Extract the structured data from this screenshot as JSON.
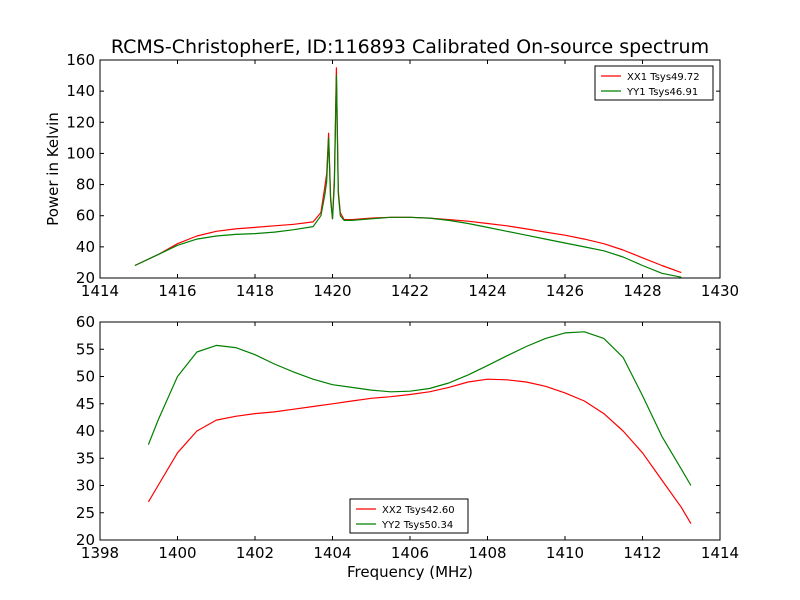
{
  "chart_data": [
    {
      "type": "line",
      "title": "RCMS-ChristopherE, ID:116893 Calibrated On-source spectrum",
      "xlabel": "",
      "ylabel": "Power in Kelvin",
      "xlim": [
        1414,
        1430
      ],
      "ylim": [
        20,
        160
      ],
      "xticks": [
        1414,
        1416,
        1418,
        1420,
        1422,
        1424,
        1426,
        1428,
        1430
      ],
      "yticks": [
        20,
        40,
        60,
        80,
        100,
        120,
        140,
        160
      ],
      "legend_position": "top-right",
      "grid": false,
      "series": [
        {
          "name": "XX1 Tsys49.72",
          "color": "#ff0000",
          "x": [
            1414.9,
            1415.5,
            1416,
            1416.5,
            1417,
            1417.5,
            1418,
            1418.5,
            1419,
            1419.5,
            1419.7,
            1419.8,
            1419.85,
            1419.9,
            1419.95,
            1420.0,
            1420.05,
            1420.1,
            1420.15,
            1420.2,
            1420.3,
            1420.5,
            1421,
            1421.5,
            1422,
            1422.5,
            1423,
            1423.5,
            1424,
            1424.5,
            1425,
            1425.5,
            1426,
            1426.5,
            1427,
            1427.5,
            1428,
            1428.5,
            1429
          ],
          "values": [
            28,
            35,
            42,
            47,
            50,
            51.5,
            52.5,
            53.5,
            54.5,
            56,
            62,
            78,
            87,
            113,
            72,
            58,
            85,
            155,
            76,
            62,
            57.5,
            57.5,
            58.5,
            59,
            59,
            58.5,
            57.5,
            56.5,
            55,
            53.5,
            51.5,
            49.5,
            47.5,
            45,
            42,
            38,
            33,
            28,
            23.5
          ]
        },
        {
          "name": "YY1 Tsys46.91",
          "color": "#008000",
          "x": [
            1414.9,
            1415.5,
            1416,
            1416.5,
            1417,
            1417.5,
            1418,
            1418.5,
            1419,
            1419.5,
            1419.7,
            1419.8,
            1419.85,
            1419.9,
            1419.95,
            1420.0,
            1420.05,
            1420.1,
            1420.15,
            1420.2,
            1420.3,
            1420.5,
            1421,
            1421.5,
            1422,
            1422.5,
            1423,
            1423.5,
            1424,
            1424.5,
            1425,
            1425.5,
            1426,
            1426.5,
            1427,
            1427.5,
            1428,
            1428.5,
            1429
          ],
          "values": [
            28,
            35,
            41,
            45,
            47,
            48,
            48.5,
            49.5,
            51,
            53,
            60,
            73,
            82,
            110,
            70,
            58,
            80,
            150,
            74,
            60,
            57,
            57,
            58,
            59,
            59,
            58.5,
            57,
            55,
            52.5,
            50,
            47.5,
            45,
            42.5,
            40,
            37.5,
            33.5,
            28,
            23,
            20.5
          ]
        }
      ]
    },
    {
      "type": "line",
      "title": "",
      "xlabel": "Frequency (MHz)",
      "ylabel": "",
      "xlim": [
        1398,
        1414
      ],
      "ylim": [
        20,
        60
      ],
      "xticks": [
        1398,
        1400,
        1402,
        1404,
        1406,
        1408,
        1410,
        1412,
        1414
      ],
      "yticks": [
        20,
        25,
        30,
        35,
        40,
        45,
        50,
        55,
        60
      ],
      "legend_position": "bottom-center",
      "grid": false,
      "series": [
        {
          "name": "XX2 Tsys42.60",
          "color": "#ff0000",
          "x": [
            1399.25,
            1399.5,
            1400,
            1400.5,
            1401,
            1401.5,
            1402,
            1402.5,
            1403,
            1403.5,
            1404,
            1404.5,
            1405,
            1405.5,
            1406,
            1406.5,
            1407,
            1407.5,
            1408,
            1408.5,
            1409,
            1409.5,
            1410,
            1410.5,
            1411,
            1411.5,
            1412,
            1412.5,
            1413,
            1413.25
          ],
          "values": [
            27,
            30,
            36,
            40,
            42,
            42.7,
            43.2,
            43.5,
            44,
            44.5,
            45,
            45.5,
            46,
            46.3,
            46.7,
            47.2,
            48,
            49,
            49.5,
            49.4,
            49,
            48.2,
            47,
            45.5,
            43.2,
            40,
            36,
            31,
            26,
            23
          ]
        },
        {
          "name": "YY2 Tsys50.34",
          "color": "#008000",
          "x": [
            1399.25,
            1399.5,
            1400,
            1400.5,
            1401,
            1401.5,
            1402,
            1402.5,
            1403,
            1403.5,
            1404,
            1404.5,
            1405,
            1405.5,
            1406,
            1406.5,
            1407,
            1407.5,
            1408,
            1408.5,
            1409,
            1409.5,
            1410,
            1410.5,
            1411,
            1411.5,
            1412,
            1412.5,
            1413,
            1413.25
          ],
          "values": [
            37.5,
            42,
            50,
            54.5,
            55.7,
            55.3,
            54,
            52.3,
            50.8,
            49.5,
            48.5,
            48,
            47.5,
            47.2,
            47.3,
            47.8,
            48.8,
            50.3,
            52,
            53.8,
            55.5,
            57,
            58,
            58.2,
            57,
            53.5,
            46.5,
            39,
            33,
            30
          ]
        }
      ]
    }
  ]
}
